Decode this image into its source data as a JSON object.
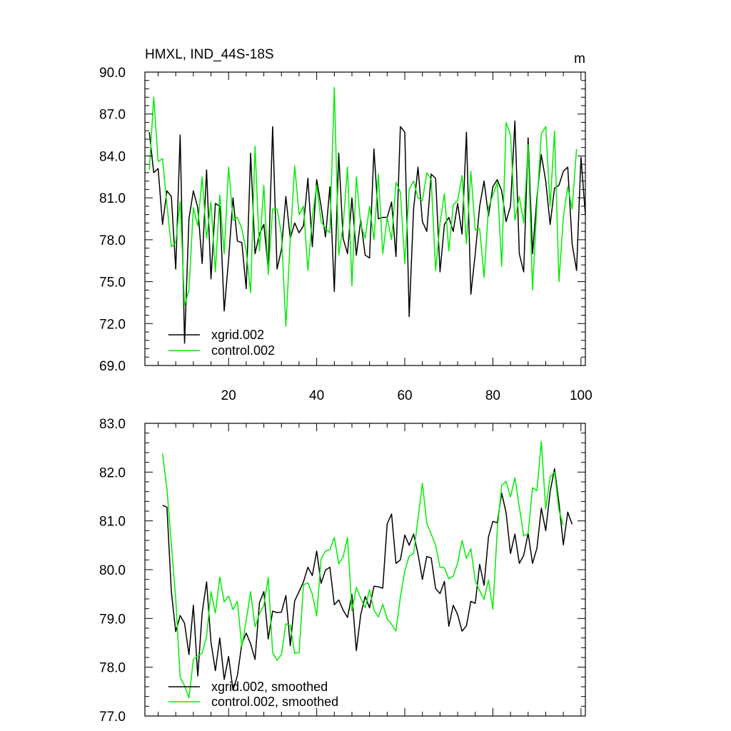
{
  "chart_data": [
    {
      "type": "line",
      "title": "HMXL, IND_44S-18S",
      "units": "m",
      "xlabel": "",
      "ylabel": "",
      "xlim": [
        1,
        101
      ],
      "ylim": [
        69.0,
        90.0
      ],
      "x_ticks": [
        20,
        40,
        60,
        80,
        100
      ],
      "y_ticks": [
        "69.0",
        "72.0",
        "75.0",
        "78.0",
        "81.0",
        "84.0",
        "87.0",
        "90.0"
      ],
      "grid": false,
      "legend_position": "bottom-left",
      "series": [
        {
          "name": "xgrid.002",
          "color": "#000000",
          "x_start": 2,
          "values": [
            85.7,
            82.8,
            83.1,
            79.1,
            81.5,
            81.1,
            75.9,
            85.5,
            70.6,
            79.5,
            81.5,
            80.3,
            76.3,
            83.0,
            75.2,
            80.6,
            80.4,
            72.9,
            76.6,
            81.0,
            77.9,
            77.8,
            74.5,
            84.2,
            77.0,
            78.4,
            79.1,
            75.9,
            86.1,
            75.9,
            77.3,
            81.1,
            78.1,
            79.2,
            78.5,
            79.0,
            82.4,
            77.5,
            82.3,
            80.4,
            78.2,
            81.8,
            74.3,
            84.2,
            78.1,
            77.0,
            81.0,
            76.9,
            79.4,
            76.9,
            76.7,
            84.5,
            79.5,
            79.6,
            79.6,
            80.7,
            76.8,
            86.1,
            85.7,
            72.5,
            80.2,
            83.2,
            79.3,
            78.6,
            82.7,
            82.4,
            75.7,
            79.1,
            79.6,
            78.6,
            80.6,
            78.4,
            85.7,
            74.1,
            77.0,
            80.4,
            82.2,
            79.7,
            81.8,
            82.3,
            81.5,
            79.3,
            80.4,
            86.5,
            77.0,
            75.7,
            85.3,
            77.0,
            81.0,
            84.1,
            82.2,
            79.1,
            81.7,
            81.9,
            82.9,
            83.2,
            77.7,
            75.8,
            83.9,
            79.8
          ]
        },
        {
          "name": "control.002",
          "color": "#00ee00",
          "x_start": 2,
          "values": [
            83.0,
            88.2,
            83.6,
            83.8,
            80.5,
            77.5,
            77.8,
            80.7,
            73.3,
            74.4,
            80.3,
            79.0,
            82.5,
            78.1,
            80.7,
            75.7,
            81.2,
            77.0,
            83.2,
            79.4,
            79.6,
            78.8,
            77.2,
            74.2,
            84.7,
            77.2,
            81.9,
            75.5,
            80.2,
            80.2,
            78.4,
            71.8,
            78.0,
            83.3,
            79.8,
            80.4,
            75.8,
            79.6,
            81.9,
            79.3,
            78.8,
            78.5,
            88.9,
            76.9,
            79.0,
            83.2,
            74.7,
            82.5,
            79.1,
            78.1,
            80.4,
            78.0,
            82.7,
            77.0,
            79.6,
            78.0,
            82.1,
            81.4,
            76.3,
            81.6,
            82.2,
            81.0,
            80.8,
            82.8,
            82.3,
            75.8,
            79.2,
            81.3,
            77.2,
            80.5,
            80.8,
            82.6,
            77.7,
            82.9,
            78.7,
            78.8,
            75.3,
            80.3,
            81.2,
            82.1,
            76.1,
            86.4,
            85.5,
            79.4,
            81.1,
            79.2,
            84.8,
            74.4,
            80.5,
            85.6,
            86.1,
            80.4,
            85.8,
            75.0,
            79.6,
            81.8,
            80.2,
            84.5
          ]
        }
      ]
    },
    {
      "type": "line",
      "title": "",
      "units": "",
      "xlabel": "",
      "ylabel": "",
      "xlim": [
        1,
        101
      ],
      "ylim": [
        77.0,
        83.0
      ],
      "x_ticks": [
        20,
        40,
        60,
        80,
        100
      ],
      "y_ticks": [
        "77.0",
        "78.0",
        "79.0",
        "80.0",
        "81.0",
        "82.0",
        "83.0"
      ],
      "grid": false,
      "legend_position": "bottom-left",
      "series": [
        {
          "name": "xgrid.002, smoothed",
          "color": "#000000",
          "x_start": 5,
          "values": [
            81.32,
            81.28,
            79.55,
            78.73,
            79.06,
            78.9,
            78.26,
            79.27,
            77.82,
            79.12,
            79.75,
            78.51,
            77.93,
            78.6,
            77.75,
            78.22,
            77.53,
            77.83,
            78.48,
            78.7,
            78.48,
            78.16,
            79.32,
            79.55,
            78.58,
            79.15,
            79.12,
            79.13,
            79.47,
            78.44,
            79.36,
            79.55,
            79.75,
            80.05,
            79.88,
            80.38,
            79.72,
            79.99,
            80.05,
            79.28,
            79.38,
            79.17,
            79.02,
            79.49,
            78.34,
            79.08,
            79.45,
            79.22,
            79.66,
            79.65,
            79.62,
            80.94,
            81.14,
            80.13,
            80.2,
            80.71,
            80.5,
            80.73,
            80.32,
            79.8,
            80.27,
            80.24,
            79.61,
            79.51,
            79.76,
            78.84,
            79.27,
            79.08,
            78.74,
            78.85,
            79.35,
            79.31,
            80.11,
            79.68,
            80.67,
            80.99,
            80.96,
            81.57,
            81.17,
            80.33,
            80.73,
            80.13,
            80.29,
            80.75,
            80.13,
            80.44,
            81.26,
            80.8,
            81.6,
            82.07,
            81.37,
            80.51,
            81.18,
            80.93
          ]
        },
        {
          "name": "control.002, smoothed",
          "color": "#00ee00",
          "x_start": 5,
          "values": [
            82.38,
            81.66,
            80.53,
            79.4,
            77.79,
            77.62,
            77.37,
            78.16,
            78.23,
            78.29,
            78.63,
            79.55,
            79.11,
            79.85,
            79.34,
            79.46,
            79.18,
            79.35,
            78.42,
            78.96,
            79.55,
            78.83,
            79.09,
            79.27,
            79.84,
            78.3,
            78.14,
            78.26,
            78.89,
            78.86,
            78.28,
            78.3,
            79.69,
            79.73,
            79.5,
            79.05,
            80.22,
            80.38,
            80.41,
            80.66,
            80.12,
            80.26,
            80.66,
            79.16,
            79.64,
            79.41,
            79.22,
            79.59,
            79.17,
            79.03,
            79.29,
            78.99,
            78.88,
            78.74,
            79.44,
            79.97,
            80.28,
            80.33,
            81.04,
            81.77,
            80.95,
            80.73,
            80.5,
            80.05,
            80.04,
            79.81,
            79.87,
            80.14,
            80.6,
            80.23,
            80.43,
            79.77,
            79.57,
            79.39,
            79.79,
            79.19,
            80.82,
            81.73,
            81.81,
            81.49,
            81.88,
            81.29,
            80.69,
            80.74,
            81.68,
            81.62,
            82.63,
            81.24,
            81.9,
            82.0,
            81.22,
            80.91
          ]
        }
      ]
    }
  ]
}
